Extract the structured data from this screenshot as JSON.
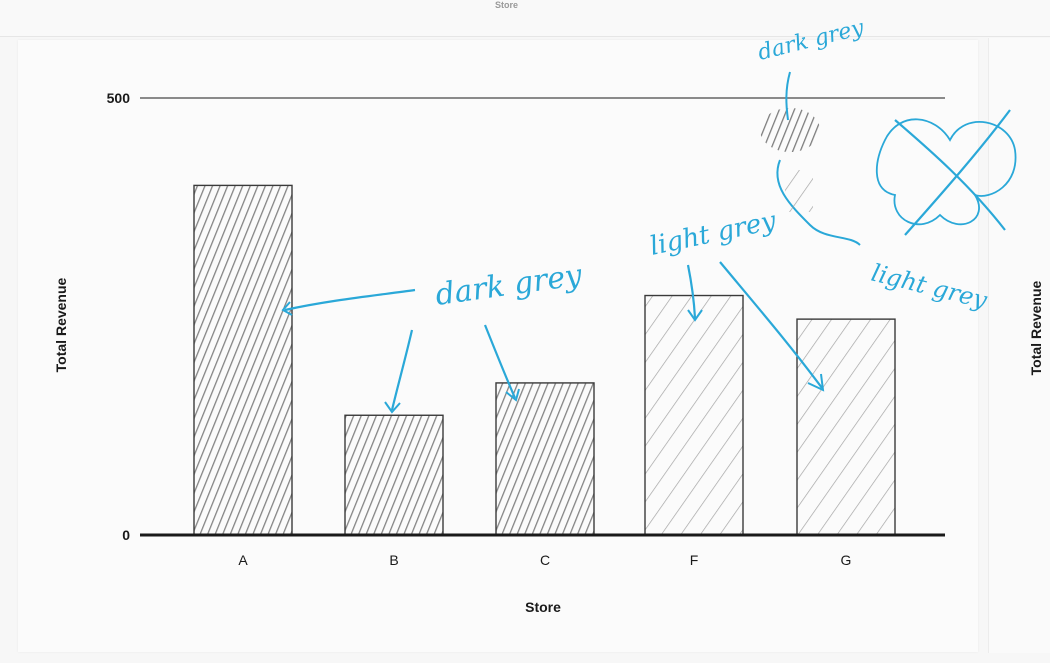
{
  "top_label": "Store",
  "side_panel": {
    "y_title": "Total Revenue"
  },
  "colors": {
    "bar_outline": "#3a3a3a",
    "dark_hatch": "#6f6f6f",
    "light_hatch": "#9a9a9a",
    "annotation": "#2aa8d8",
    "axis": "#1a1a1a",
    "gridline": "#8a8a8a"
  },
  "annotations": {
    "dark_grey": "dark grey",
    "light_grey": "light grey",
    "dark_grey_legend": "dark grey",
    "light_grey_legend": "light grey"
  },
  "chart_data": {
    "type": "bar",
    "title": "",
    "xlabel": "Store",
    "ylabel": "Total Revenue",
    "categories": [
      "A",
      "B",
      "C",
      "F",
      "G"
    ],
    "values": [
      400,
      137,
      174,
      274,
      247
    ],
    "fill": [
      "dark grey",
      "dark grey",
      "dark grey",
      "light grey",
      "light grey"
    ],
    "ylim": [
      0,
      500
    ],
    "yticks": [
      0,
      500
    ],
    "grid": true
  }
}
